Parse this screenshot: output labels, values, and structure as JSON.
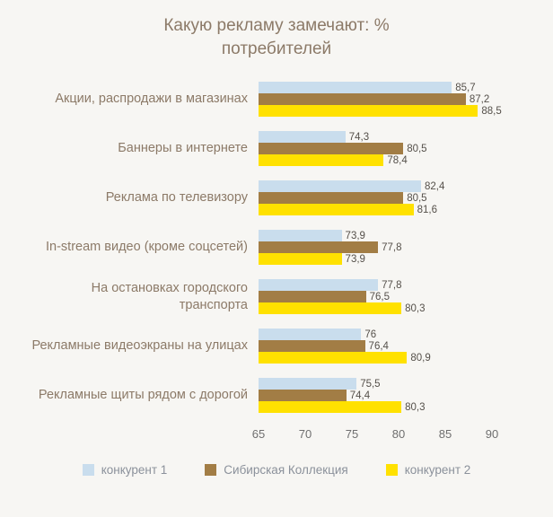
{
  "chart_data": {
    "type": "bar",
    "orientation": "horizontal",
    "title": "Какую рекламу замечают: % потребителей",
    "categories": [
      "Акции, распродажи в магазинах",
      "Баннеры в интернете",
      "Реклама по телевизору",
      "In-stream видео (кроме соцсетей)",
      "На остановках городского транспорта",
      "Рекламные видеоэкраны на улицах",
      "Рекламные щиты рядом с дорогой"
    ],
    "series": [
      {
        "name": "конкурент 1",
        "color": "#c9dded",
        "values": [
          85.7,
          74.3,
          82.4,
          73.9,
          77.8,
          76,
          75.5
        ]
      },
      {
        "name": "Сибирская Коллекция",
        "color": "#a27d45",
        "values": [
          87.2,
          80.5,
          80.5,
          77.8,
          76.5,
          76.4,
          74.4
        ]
      },
      {
        "name": "конкурент 2",
        "color": "#ffe100",
        "values": [
          88.5,
          78.4,
          81.6,
          73.9,
          80.3,
          80.9,
          80.3
        ]
      }
    ],
    "xlim": [
      65,
      90
    ],
    "xticks": [
      65,
      70,
      75,
      80,
      85,
      90
    ],
    "legend_position": "bottom",
    "decimal_separator": ",",
    "background_color": "#f7f6f3",
    "title_color": "#8c7a68"
  }
}
